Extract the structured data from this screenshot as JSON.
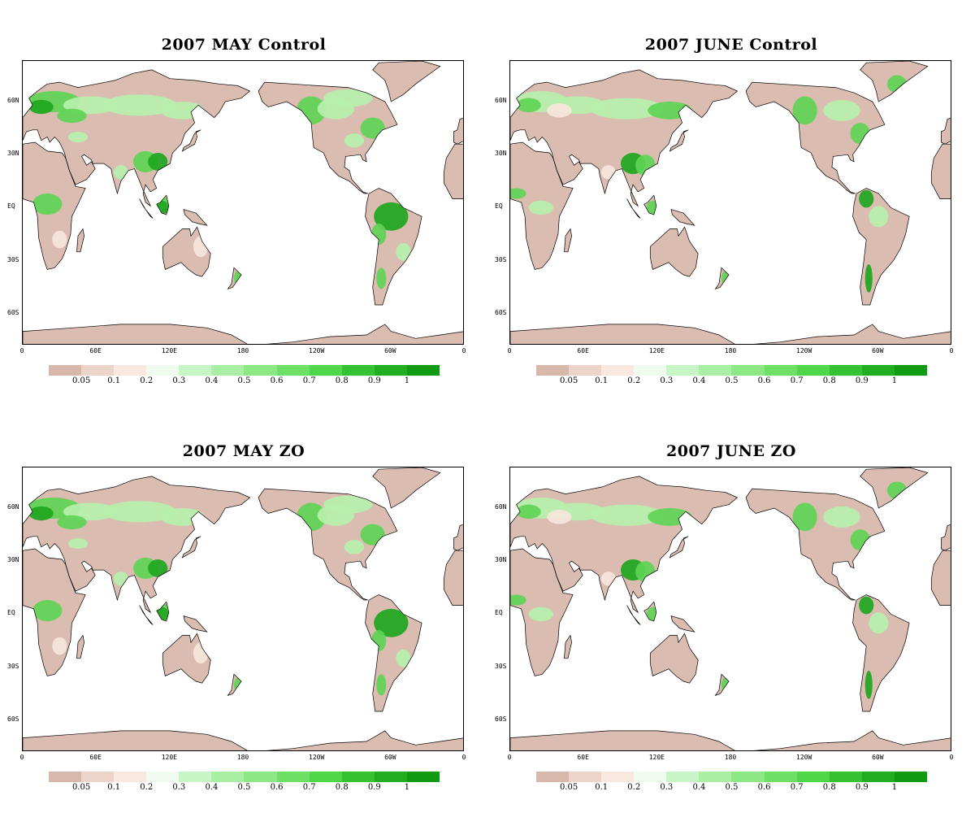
{
  "panels": [
    {
      "title": "2007 MAY Control"
    },
    {
      "title": "2007 JUNE Control"
    },
    {
      "title": "2007 MAY ZO"
    },
    {
      "title": "2007 JUNE ZO"
    }
  ],
  "lat_labels": [
    "60N",
    "30N",
    "EQ",
    "30S",
    "60S"
  ],
  "lon_labels": [
    "0",
    "60E",
    "120E",
    "180",
    "120W",
    "60W",
    "0"
  ],
  "colorbar": {
    "labels": [
      "0.05",
      "0.1",
      "0.2",
      "0.3",
      "0.4",
      "0.5",
      "0.6",
      "0.7",
      "0.8",
      "0.9",
      "1"
    ],
    "colors": [
      "#d9b8ac",
      "#ecd4cb",
      "#f8e8df",
      "#f0fbf0",
      "#c8f5c5",
      "#a9efa3",
      "#8be884",
      "#6ee066",
      "#4fd74a",
      "#35c232",
      "#20ad20",
      "#0f9a12"
    ]
  },
  "colors": {
    "land_dry": "#dbbcb0",
    "land_pale": "#f7e6dc",
    "veg_light": "#b6f0ac",
    "veg_mid": "#5ed455",
    "veg_dark": "#1fa61f",
    "coast": "#000000"
  }
}
